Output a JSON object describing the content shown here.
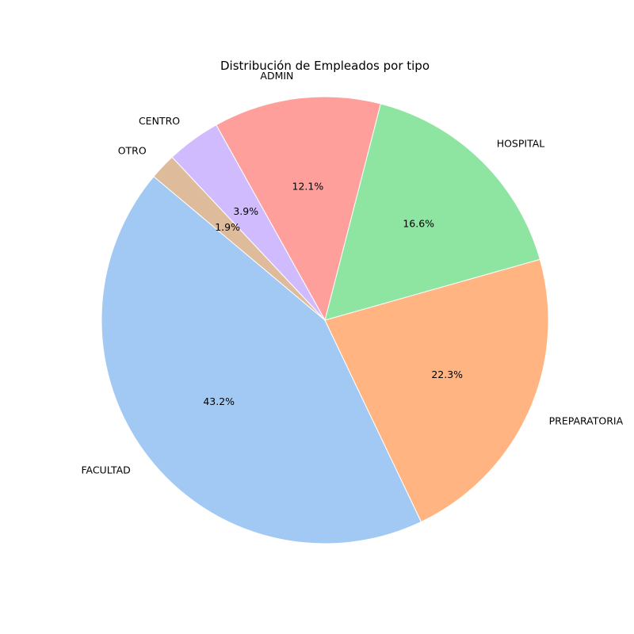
{
  "chart_data": {
    "type": "pie",
    "title": "Distribución de Empleados por tipo",
    "slices": [
      {
        "label": "FACULTAD",
        "value": 43.2,
        "pct_label": "43.2%",
        "color": "#a1c9f4"
      },
      {
        "label": "PREPARATORIA",
        "value": 22.3,
        "pct_label": "22.3%",
        "color": "#ffb482"
      },
      {
        "label": "HOSPITAL",
        "value": 16.6,
        "pct_label": "16.6%",
        "color": "#8de5a1"
      },
      {
        "label": "ADMIN",
        "value": 12.1,
        "pct_label": "12.1%",
        "color": "#ff9f9b"
      },
      {
        "label": "CENTRO",
        "value": 3.9,
        "pct_label": "3.9%",
        "color": "#d0bbff"
      },
      {
        "label": "OTRO",
        "value": 1.9,
        "pct_label": "1.9%",
        "color": "#debb9b"
      }
    ],
    "start_angle_deg": 140,
    "direction": "counterclockwise",
    "legend": "none"
  }
}
